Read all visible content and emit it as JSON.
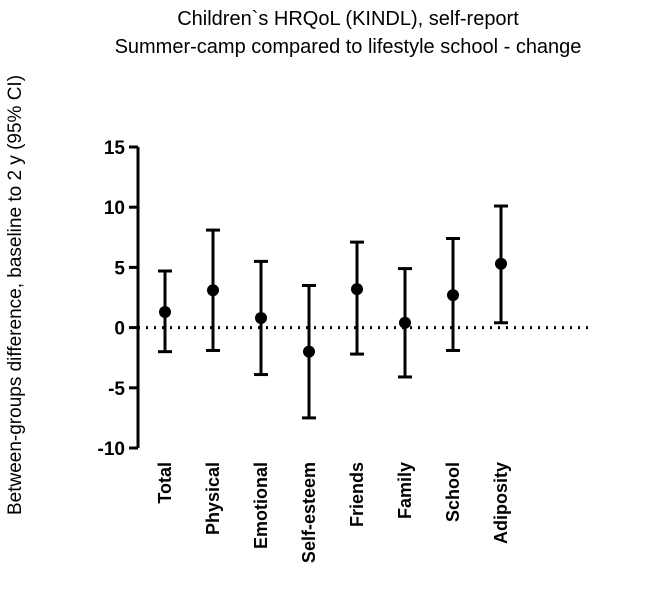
{
  "chart_data": {
    "type": "scatter",
    "title": "Children`s HRQoL (KINDL), self-report",
    "subtitle": "Summer-camp compared to lifestyle school - change",
    "xlabel": "",
    "ylabel": "Between-groups difference, baseline to 2 y (95% CI)",
    "categories": [
      "Total",
      "Physical",
      "Emotional",
      "Self-esteem",
      "Friends",
      "Family",
      "School",
      "Adiposity"
    ],
    "series": [
      {
        "values": [
          1.3,
          3.1,
          0.8,
          -2.0,
          3.2,
          0.4,
          2.7,
          5.3
        ],
        "ci_lower": [
          -2.0,
          -1.9,
          -3.9,
          -7.5,
          -2.2,
          -4.1,
          -1.9,
          0.4
        ],
        "ci_upper": [
          4.7,
          8.1,
          5.5,
          3.5,
          7.1,
          4.9,
          7.4,
          10.1
        ]
      }
    ],
    "ylim": [
      -10,
      15
    ],
    "yticks": [
      -10,
      -5,
      0,
      5,
      10,
      15
    ],
    "reference_line": {
      "y": 0,
      "style": "dotted"
    },
    "grid": false,
    "error_bars": "95% CI",
    "colors": {
      "marker": "#000000",
      "axis": "#000000"
    }
  }
}
